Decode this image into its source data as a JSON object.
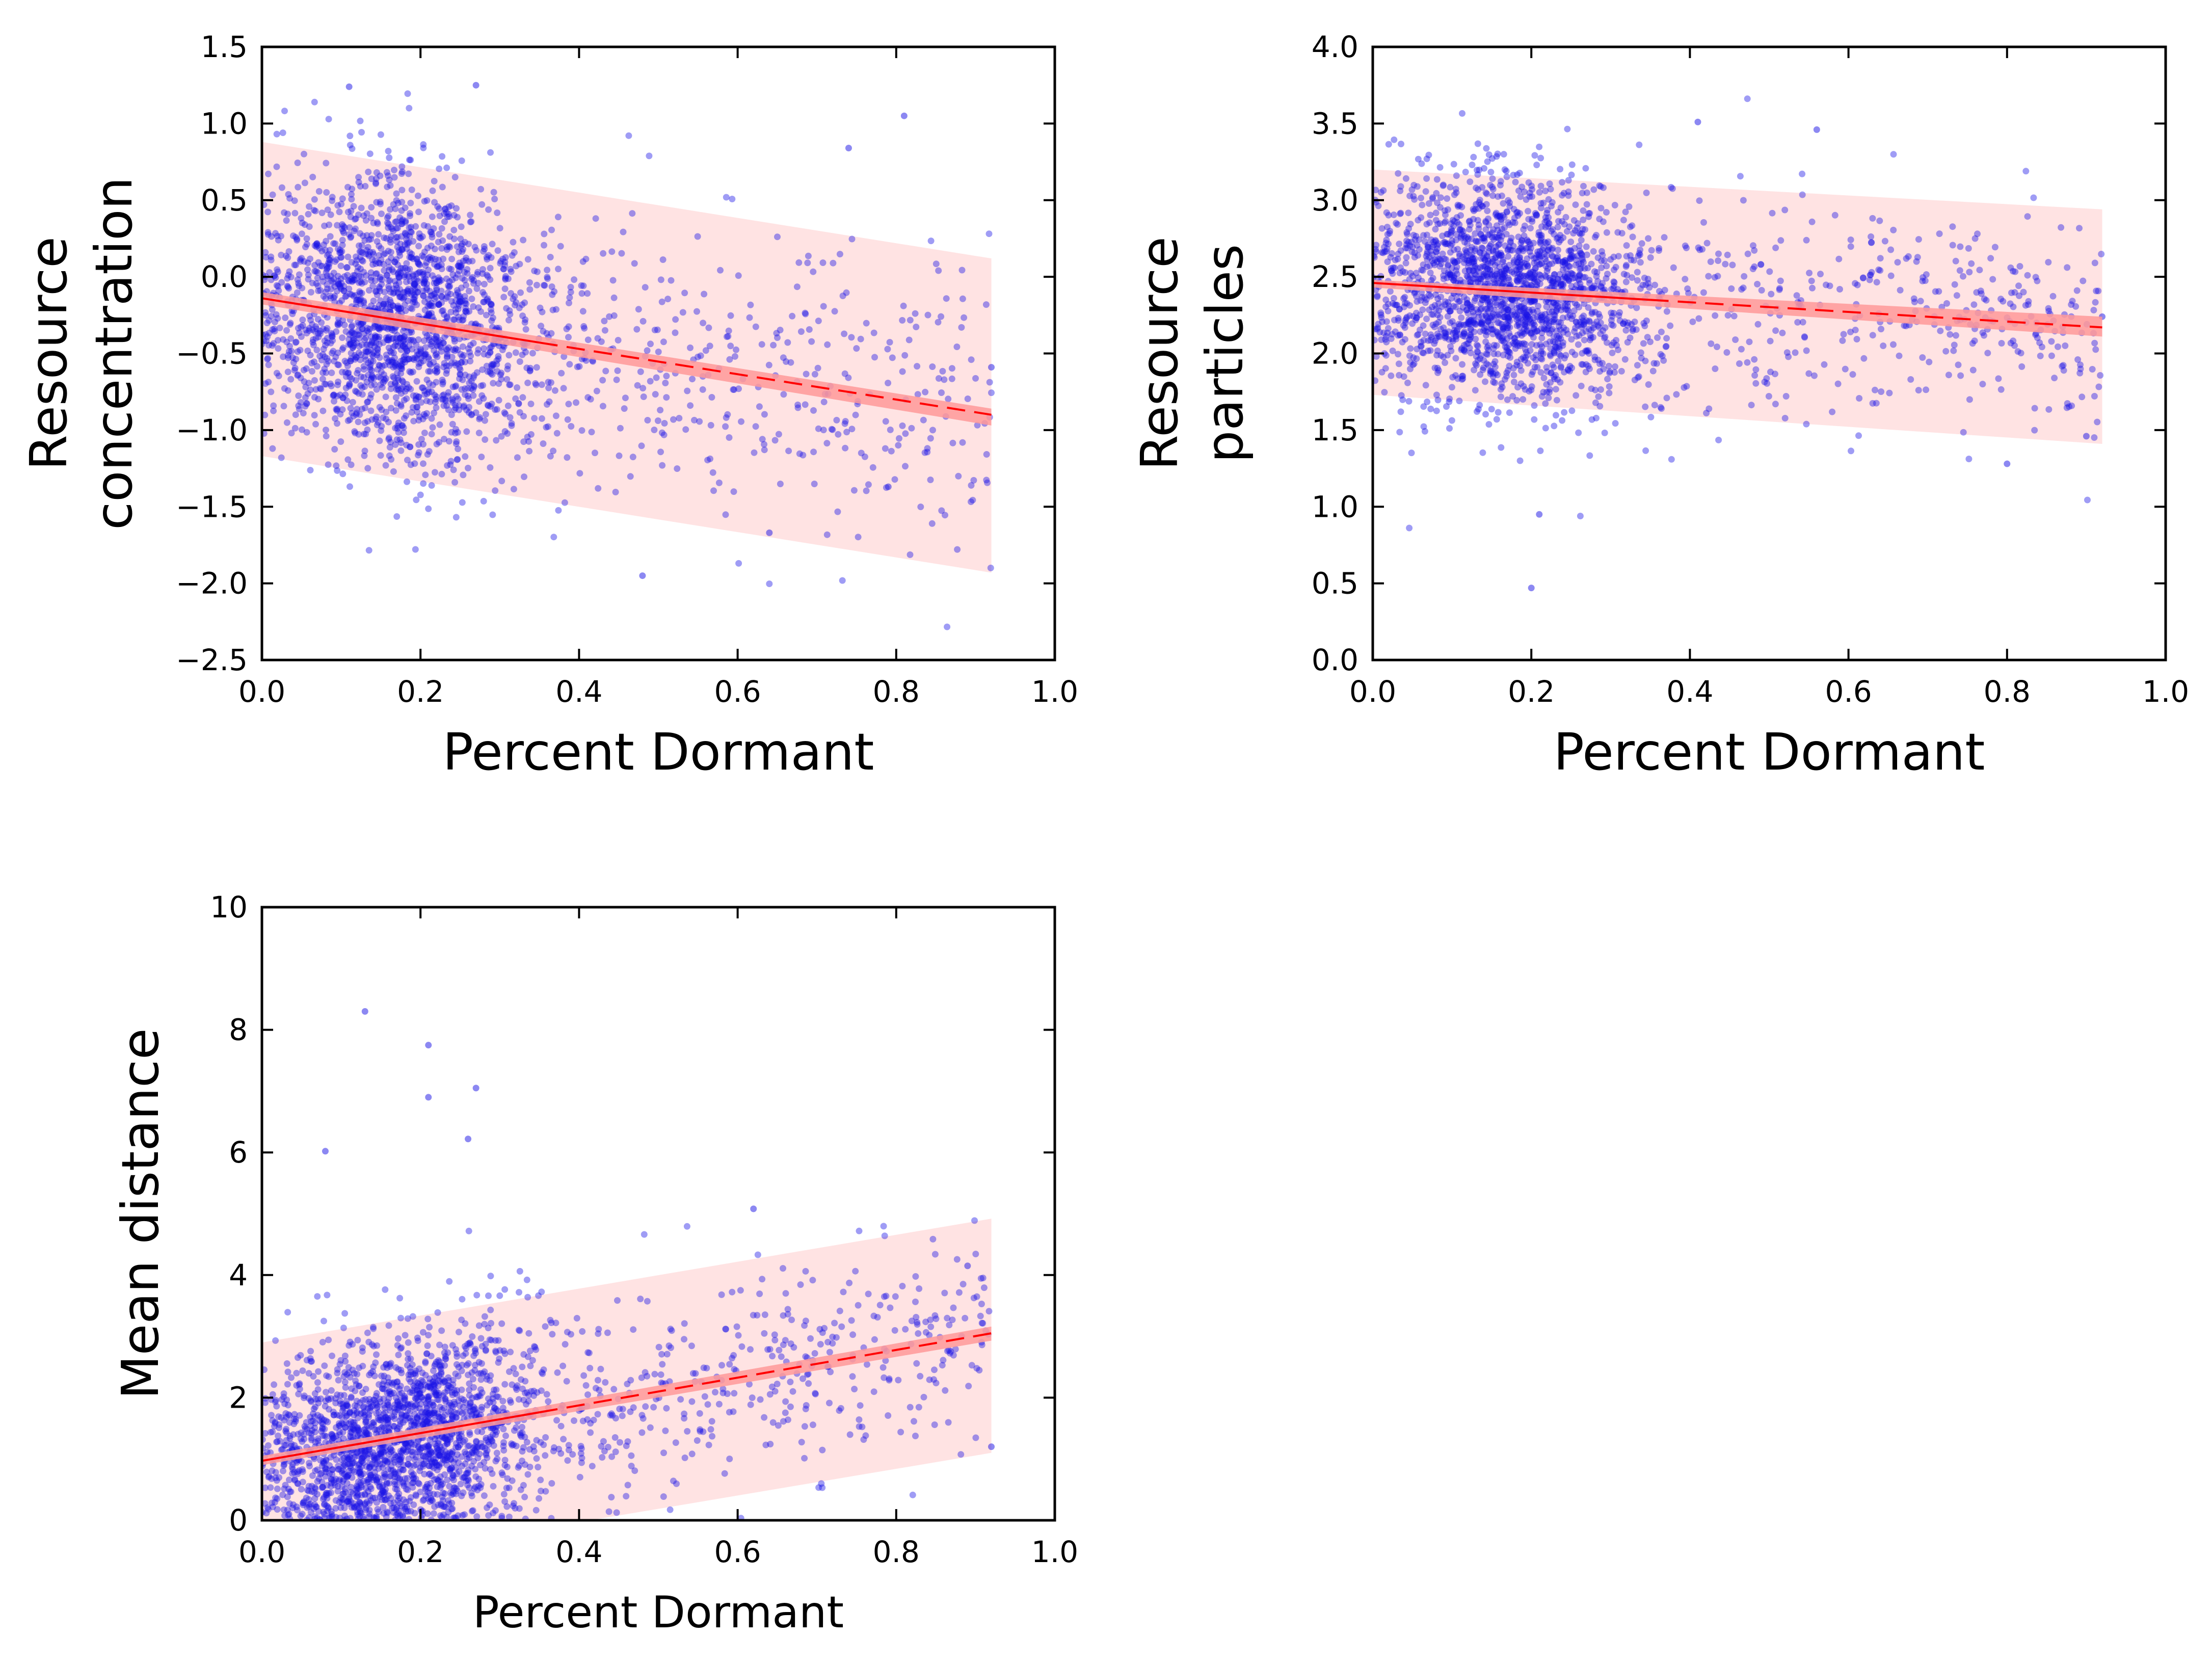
{
  "chart_data": [
    {
      "type": "scatter",
      "title": "",
      "xlabel": "Percent Dormant",
      "ylabel": [
        "Resource",
        "concentration"
      ],
      "xlim": [
        0.0,
        1.0
      ],
      "ylim": [
        -2.5,
        1.5
      ],
      "xticks": [
        "0.0",
        "0.2",
        "0.4",
        "0.6",
        "0.8",
        "1.0"
      ],
      "yticks": [
        "−2.5",
        "−2.0",
        "−1.5",
        "−1.0",
        "−0.5",
        "0.0",
        "0.5",
        "1.0",
        "1.5"
      ],
      "grid": false,
      "point_color": "#1a12e6",
      "fit_color": "#ff0000",
      "band_color": "#ff9999",
      "fit_line": {
        "x": [
          0.0,
          0.92
        ],
        "y": [
          -0.14,
          -0.9
        ]
      },
      "ci_band": {
        "x": [
          0.0,
          0.92
        ],
        "upper": [
          -0.1,
          -0.86
        ],
        "lower": [
          -0.18,
          -0.97
        ]
      },
      "prediction_band": {
        "x": [
          0.0,
          0.92
        ],
        "upper": [
          0.88,
          0.12
        ],
        "lower": [
          -1.17,
          -1.93
        ]
      },
      "points": {
        "count": 2400,
        "x_distribution": "dense between 0.0 and 0.3, sparse tail to 0.92",
        "y_spread_sd": 0.46,
        "notable": [
          {
            "x": 0.11,
            "y": 1.24
          },
          {
            "x": 0.27,
            "y": 1.25
          },
          {
            "x": 0.81,
            "y": 1.05
          },
          {
            "x": 0.48,
            "y": -1.95
          },
          {
            "x": 0.64,
            "y": -1.67
          },
          {
            "x": 0.92,
            "y": -0.59
          },
          {
            "x": 0.79,
            "y": -1.37
          },
          {
            "x": 0.74,
            "y": 0.84
          }
        ]
      }
    },
    {
      "type": "scatter",
      "title": "",
      "xlabel": "Percent Dormant",
      "ylabel": [
        "Resource",
        "particles"
      ],
      "xlim": [
        0.0,
        1.0
      ],
      "ylim": [
        0.0,
        4.0
      ],
      "xticks": [
        "0.0",
        "0.2",
        "0.4",
        "0.6",
        "0.8",
        "1.0"
      ],
      "yticks": [
        "0.0",
        "0.5",
        "1.0",
        "1.5",
        "2.0",
        "2.5",
        "3.0",
        "3.5",
        "4.0"
      ],
      "grid": false,
      "point_color": "#1a12e6",
      "fit_color": "#ff0000",
      "band_color": "#ff9999",
      "fit_line": {
        "x": [
          0.0,
          0.92
        ],
        "y": [
          2.46,
          2.17
        ]
      },
      "ci_band": {
        "x": [
          0.0,
          0.92
        ],
        "upper": [
          2.48,
          2.24
        ],
        "lower": [
          2.43,
          2.11
        ]
      },
      "prediction_band": {
        "x": [
          0.0,
          0.92
        ],
        "upper": [
          3.2,
          2.94
        ],
        "lower": [
          1.73,
          1.41
        ]
      },
      "points": {
        "count": 2400,
        "x_distribution": "dense between 0.0 and 0.3, sparse tail to 0.92",
        "y_spread_sd": 0.36,
        "notable": [
          {
            "x": 0.2,
            "y": 0.47
          },
          {
            "x": 0.41,
            "y": 3.51
          },
          {
            "x": 0.56,
            "y": 3.46
          },
          {
            "x": 0.92,
            "y": 2.24
          },
          {
            "x": 0.8,
            "y": 1.28
          },
          {
            "x": 0.9,
            "y": 1.46
          },
          {
            "x": 0.21,
            "y": 0.95
          }
        ]
      }
    },
    {
      "type": "scatter",
      "title": "",
      "xlabel": "Percent Dormant",
      "ylabel": [
        "Mean distance"
      ],
      "xlim": [
        0.0,
        1.0
      ],
      "ylim": [
        0,
        10
      ],
      "xticks": [
        "0.0",
        "0.2",
        "0.4",
        "0.6",
        "0.8",
        "1.0"
      ],
      "yticks": [
        "0",
        "2",
        "4",
        "6",
        "8",
        "10"
      ],
      "grid": false,
      "point_color": "#1a12e6",
      "fit_color": "#ff0000",
      "band_color": "#ff9999",
      "fit_line": {
        "x": [
          0.0,
          0.92
        ],
        "y": [
          0.97,
          3.05
        ]
      },
      "ci_band": {
        "x": [
          0.0,
          0.92
        ],
        "upper": [
          1.05,
          3.16
        ],
        "lower": [
          0.9,
          2.93
        ]
      },
      "prediction_band": {
        "x": [
          0.0,
          0.92
        ],
        "upper": [
          2.9,
          4.92
        ],
        "lower": [
          -0.9,
          1.1
        ]
      },
      "points": {
        "count": 2400,
        "x_distribution": "dense between 0.0 and 0.3, sparse tail to 0.92",
        "y_spread_sd": 0.85,
        "notable": [
          {
            "x": 0.13,
            "y": 8.3
          },
          {
            "x": 0.21,
            "y": 7.75
          },
          {
            "x": 0.27,
            "y": 7.05
          },
          {
            "x": 0.21,
            "y": 6.9
          },
          {
            "x": 0.26,
            "y": 6.22
          },
          {
            "x": 0.08,
            "y": 6.02
          },
          {
            "x": 0.89,
            "y": 4.15
          },
          {
            "x": 0.62,
            "y": 5.08
          },
          {
            "x": 0.92,
            "y": 1.2
          }
        ]
      }
    }
  ]
}
